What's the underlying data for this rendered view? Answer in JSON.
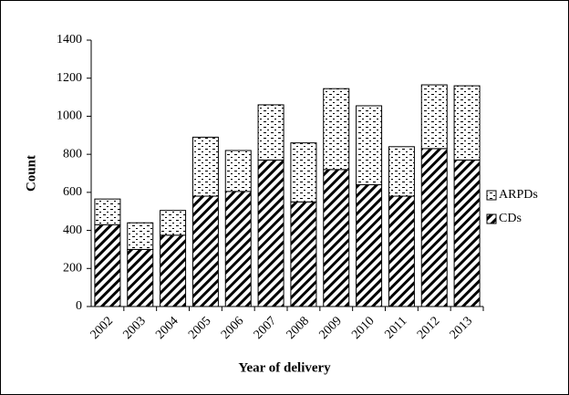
{
  "chart_data": {
    "type": "stacked_bar",
    "x_label": "Year of delivery",
    "y_label": "Count",
    "categories": [
      "2002",
      "2003",
      "2004",
      "2005",
      "2006",
      "2007",
      "2008",
      "2009",
      "2010",
      "2011",
      "2012",
      "2013"
    ],
    "series": [
      {
        "name": "CDs",
        "color": "#000000",
        "pattern": "hatch",
        "values": [
          430,
          300,
          375,
          580,
          605,
          770,
          550,
          720,
          640,
          580,
          830,
          770
        ]
      },
      {
        "name": "ARPDs",
        "color": "#000000",
        "pattern": "dots",
        "values": [
          135,
          140,
          130,
          310,
          215,
          290,
          310,
          425,
          415,
          260,
          335,
          390
        ]
      }
    ],
    "ylim": [
      0,
      1400
    ],
    "yticks": [
      0,
      200,
      400,
      600,
      800,
      1000,
      1200,
      1400
    ],
    "grid": false,
    "legend": "right"
  }
}
